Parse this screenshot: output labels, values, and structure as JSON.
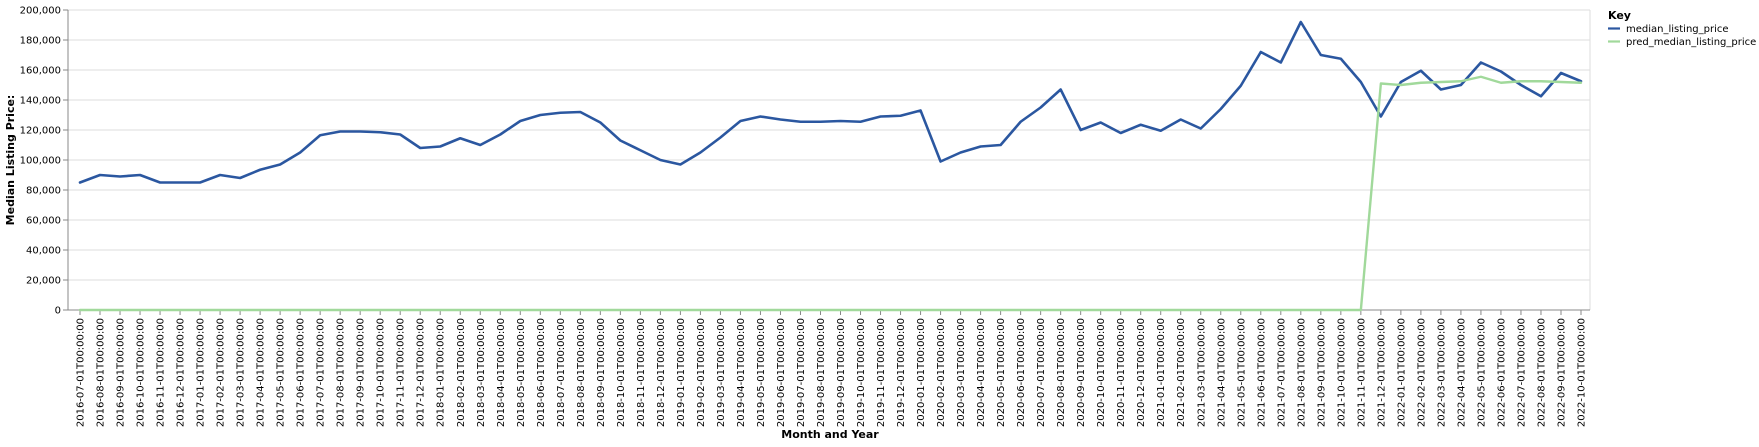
{
  "chart_data": {
    "type": "line",
    "xlabel": "Month and Year",
    "ylabel": "Median Listing Price:",
    "ylim": [
      0,
      200000
    ],
    "yticks": [
      0,
      20000,
      40000,
      60000,
      80000,
      100000,
      120000,
      140000,
      160000,
      180000,
      200000
    ],
    "ytick_labels": [
      "0",
      "20,000",
      "40,000",
      "60,000",
      "80,000",
      "100,000",
      "120,000",
      "140,000",
      "160,000",
      "180,000",
      "200,000"
    ],
    "grid": true,
    "legend_title": "Key",
    "legend_position": "top-right",
    "x": [
      "2016-07-01T00:00:00",
      "2016-08-01T00:00:00",
      "2016-09-01T00:00:00",
      "2016-10-01T00:00:00",
      "2016-11-01T00:00:00",
      "2016-12-01T00:00:00",
      "2017-01-01T00:00:00",
      "2017-02-01T00:00:00",
      "2017-03-01T00:00:00",
      "2017-04-01T00:00:00",
      "2017-05-01T00:00:00",
      "2017-06-01T00:00:00",
      "2017-07-01T00:00:00",
      "2017-08-01T00:00:00",
      "2017-09-01T00:00:00",
      "2017-10-01T00:00:00",
      "2017-11-01T00:00:00",
      "2017-12-01T00:00:00",
      "2018-01-01T00:00:00",
      "2018-02-01T00:00:00",
      "2018-03-01T00:00:00",
      "2018-04-01T00:00:00",
      "2018-05-01T00:00:00",
      "2018-06-01T00:00:00",
      "2018-07-01T00:00:00",
      "2018-08-01T00:00:00",
      "2018-09-01T00:00:00",
      "2018-10-01T00:00:00",
      "2018-11-01T00:00:00",
      "2018-12-01T00:00:00",
      "2019-01-01T00:00:00",
      "2019-02-01T00:00:00",
      "2019-03-01T00:00:00",
      "2019-04-01T00:00:00",
      "2019-05-01T00:00:00",
      "2019-06-01T00:00:00",
      "2019-07-01T00:00:00",
      "2019-08-01T00:00:00",
      "2019-09-01T00:00:00",
      "2019-10-01T00:00:00",
      "2019-11-01T00:00:00",
      "2019-12-01T00:00:00",
      "2020-01-01T00:00:00",
      "2020-02-01T00:00:00",
      "2020-03-01T00:00:00",
      "2020-04-01T00:00:00",
      "2020-05-01T00:00:00",
      "2020-06-01T00:00:00",
      "2020-07-01T00:00:00",
      "2020-08-01T00:00:00",
      "2020-09-01T00:00:00",
      "2020-10-01T00:00:00",
      "2020-11-01T00:00:00",
      "2020-12-01T00:00:00",
      "2021-01-01T00:00:00",
      "2021-02-01T00:00:00",
      "2021-03-01T00:00:00",
      "2021-04-01T00:00:00",
      "2021-05-01T00:00:00",
      "2021-06-01T00:00:00",
      "2021-07-01T00:00:00",
      "2021-08-01T00:00:00",
      "2021-09-01T00:00:00",
      "2021-10-01T00:00:00",
      "2021-11-01T00:00:00",
      "2021-12-01T00:00:00",
      "2022-01-01T00:00:00",
      "2022-02-01T00:00:00",
      "2022-03-01T00:00:00",
      "2022-04-01T00:00:00",
      "2022-05-01T00:00:00",
      "2022-06-01T00:00:00",
      "2022-07-01T00:00:00",
      "2022-08-01T00:00:00",
      "2022-09-01T00:00:00",
      "2022-10-01T00:00:00"
    ],
    "series": [
      {
        "name": "median_listing_price",
        "color": "#2b57a0",
        "values": [
          85000,
          90000,
          89000,
          90000,
          85000,
          85000,
          85000,
          90000,
          88000,
          93500,
          97000,
          105000,
          116500,
          119000,
          119000,
          118500,
          117000,
          108000,
          109000,
          114500,
          110000,
          117000,
          126000,
          130000,
          131500,
          132000,
          125000,
          113000,
          106500,
          100000,
          97000,
          105000,
          115000,
          126000,
          129000,
          127000,
          125500,
          125500,
          126000,
          125500,
          129000,
          129500,
          133000,
          99000,
          105000,
          109000,
          110000,
          125500,
          135000,
          147000,
          120000,
          125000,
          118000,
          123500,
          119500,
          127000,
          121000,
          134000,
          149500,
          172000,
          165000,
          192000,
          170000,
          167500,
          152000,
          129000,
          152000,
          159500,
          147000,
          150000,
          165000,
          159000,
          150000,
          142500,
          158000,
          152500
        ]
      },
      {
        "name": "pred_median_listing_price",
        "color": "#a1d99b",
        "values": [
          0,
          0,
          0,
          0,
          0,
          0,
          0,
          0,
          0,
          0,
          0,
          0,
          0,
          0,
          0,
          0,
          0,
          0,
          0,
          0,
          0,
          0,
          0,
          0,
          0,
          0,
          0,
          0,
          0,
          0,
          0,
          0,
          0,
          0,
          0,
          0,
          0,
          0,
          0,
          0,
          0,
          0,
          0,
          0,
          0,
          0,
          0,
          0,
          0,
          0,
          0,
          0,
          0,
          0,
          0,
          0,
          0,
          0,
          0,
          0,
          0,
          0,
          0,
          0,
          0,
          151000,
          150000,
          151500,
          152000,
          152500,
          155500,
          151500,
          152500,
          152500,
          152000,
          151500
        ]
      }
    ]
  }
}
